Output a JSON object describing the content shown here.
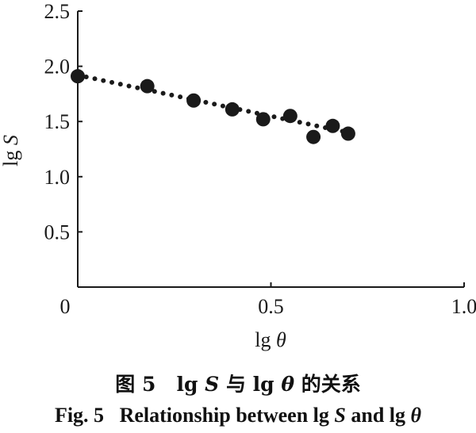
{
  "chart_data": {
    "type": "scatter",
    "xlim": [
      0,
      1.0
    ],
    "ylim": [
      0,
      2.5
    ],
    "x_ticks": [
      "0",
      "0.5",
      "1.0"
    ],
    "y_ticks": [
      "0.5",
      "1.0",
      "1.5",
      "2.0",
      "2.5"
    ],
    "xlabel": {
      "prefix": "lg ",
      "symbol": "θ"
    },
    "ylabel": {
      "prefix": "lg ",
      "symbol": "S"
    },
    "points": [
      {
        "x": 0.0,
        "y": 1.91
      },
      {
        "x": 0.18,
        "y": 1.82
      },
      {
        "x": 0.3,
        "y": 1.69
      },
      {
        "x": 0.4,
        "y": 1.61
      },
      {
        "x": 0.48,
        "y": 1.52
      },
      {
        "x": 0.55,
        "y": 1.55
      },
      {
        "x": 0.61,
        "y": 1.36
      },
      {
        "x": 0.66,
        "y": 1.46
      },
      {
        "x": 0.7,
        "y": 1.39
      }
    ],
    "trendline": {
      "style": "dotted",
      "x": [
        0.0,
        0.7
      ],
      "y": [
        1.92,
        1.4
      ]
    },
    "grid": false,
    "marker_color": "#1a1a1a"
  },
  "caption_cn": {
    "fig": "图 5",
    "lg1": "lg ",
    "s": "S",
    "mid": " 与 ",
    "lg2": "lg ",
    "theta": "θ",
    "end": " 的关系"
  },
  "caption_en": {
    "fig": "Fig. 5",
    "text": "Relationship between lg ",
    "s": "S",
    "and": " and lg ",
    "theta": "θ"
  }
}
